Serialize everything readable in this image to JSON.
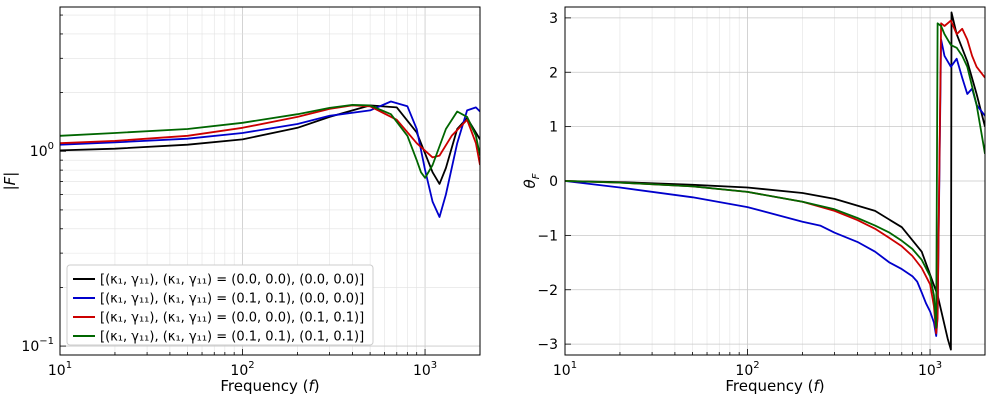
{
  "colors": {
    "black": "#000000",
    "blue": "#0000cc",
    "red": "#cc0000",
    "green": "#006600"
  },
  "chart_data": [
    {
      "type": "line",
      "xlabel": "Frequency (f)",
      "ylabel": "|F|",
      "xscale": "log",
      "yscale": "log",
      "xlim": [
        10,
        2000
      ],
      "ylim": [
        0.09,
        5.5
      ],
      "x_ticks": [
        {
          "v": 10,
          "base": "10",
          "exp": "1"
        },
        {
          "v": 100,
          "base": "10",
          "exp": "2"
        },
        {
          "v": 1000,
          "base": "10",
          "exp": "3"
        }
      ],
      "y_ticks": [
        {
          "v": 0.1,
          "base": "10",
          "exp": "−1"
        },
        {
          "v": 1,
          "base": "10",
          "exp": "0"
        }
      ],
      "grid": true,
      "legend_position": "lower-left",
      "series": [
        {
          "name": "[(κ₁, γ₁₁), (κ₁, γ₁₁) = (0.0, 0.0), (0.0, 0.0)]",
          "color": "#000000",
          "x": [
            10,
            20,
            50,
            100,
            200,
            300,
            500,
            700,
            900,
            1100,
            1200,
            1300,
            1500,
            1700,
            2000
          ],
          "y": [
            1.01,
            1.03,
            1.08,
            1.15,
            1.32,
            1.5,
            1.72,
            1.68,
            1.25,
            0.78,
            0.68,
            0.82,
            1.3,
            1.48,
            1.15
          ]
        },
        {
          "name": "[(κ₁, γ₁₁), (κ₁, γ₁₁) = (0.1, 0.1), (0.0, 0.0)]",
          "color": "#0000cc",
          "x": [
            10,
            20,
            50,
            100,
            200,
            300,
            500,
            650,
            800,
            900,
            1000,
            1100,
            1200,
            1300,
            1500,
            1700,
            1900,
            2000
          ],
          "y": [
            1.08,
            1.11,
            1.16,
            1.24,
            1.38,
            1.52,
            1.62,
            1.8,
            1.7,
            1.3,
            0.8,
            0.55,
            0.46,
            0.6,
            1.1,
            1.62,
            1.68,
            1.6
          ]
        },
        {
          "name": "[(κ₁, γ₁₁), (κ₁, γ₁₁) = (0.0, 0.0), (0.1, 0.1)]",
          "color": "#cc0000",
          "x": [
            10,
            20,
            50,
            100,
            200,
            300,
            400,
            500,
            700,
            900,
            1100,
            1200,
            1400,
            1700,
            1900,
            2000
          ],
          "y": [
            1.1,
            1.13,
            1.2,
            1.32,
            1.5,
            1.65,
            1.72,
            1.7,
            1.45,
            1.1,
            0.93,
            0.95,
            1.2,
            1.45,
            1.1,
            0.85
          ]
        },
        {
          "name": "[(κ₁, γ₁₁), (κ₁, γ₁₁) = (0.1, 0.1), (0.1, 0.1)]",
          "color": "#006600",
          "x": [
            10,
            20,
            50,
            100,
            200,
            300,
            400,
            500,
            650,
            800,
            900,
            950,
            1000,
            1100,
            1300,
            1500,
            1700,
            1900,
            2000
          ],
          "y": [
            1.2,
            1.24,
            1.3,
            1.4,
            1.55,
            1.67,
            1.73,
            1.72,
            1.55,
            1.2,
            0.9,
            0.78,
            0.73,
            0.85,
            1.3,
            1.6,
            1.5,
            1.2,
            0.95
          ]
        }
      ]
    },
    {
      "type": "line",
      "xlabel": "Frequency (f)",
      "ylabel": "θF",
      "xscale": "log",
      "yscale": "linear",
      "xlim": [
        10,
        2000
      ],
      "ylim": [
        -3.2,
        3.2
      ],
      "x_ticks": [
        {
          "v": 10,
          "base": "10",
          "exp": "1"
        },
        {
          "v": 100,
          "base": "10",
          "exp": "2"
        },
        {
          "v": 1000,
          "base": "10",
          "exp": "3"
        }
      ],
      "y_ticks": [
        -3,
        -2,
        -1,
        0,
        1,
        2,
        3
      ],
      "grid": true,
      "series": [
        {
          "name": "black",
          "color": "#000000",
          "x": [
            10,
            20,
            50,
            100,
            200,
            300,
            500,
            700,
            900,
            1100,
            1250,
            1300,
            1310,
            1400,
            1600,
            1800,
            2000
          ],
          "y": [
            0,
            -0.02,
            -0.07,
            -0.12,
            -0.22,
            -0.33,
            -0.55,
            -0.85,
            -1.3,
            -2.1,
            -2.9,
            -3.1,
            3.1,
            2.7,
            2.2,
            1.6,
            1.0
          ]
        },
        {
          "name": "blue",
          "color": "#0000cc",
          "x": [
            10,
            20,
            50,
            100,
            200,
            250,
            300,
            400,
            500,
            600,
            700,
            800,
            850,
            900,
            950,
            1000,
            1050,
            1080,
            1100,
            1150,
            1200,
            1300,
            1400,
            1500,
            1600,
            1700,
            1800,
            2000
          ],
          "y": [
            0,
            -0.12,
            -0.3,
            -0.48,
            -0.75,
            -0.82,
            -0.95,
            -1.12,
            -1.3,
            -1.5,
            -1.62,
            -1.75,
            -1.85,
            -2.05,
            -2.25,
            -2.4,
            -2.6,
            -2.85,
            -2.5,
            2.6,
            2.3,
            2.1,
            2.25,
            1.9,
            1.6,
            1.7,
            1.4,
            1.2
          ]
        },
        {
          "name": "red",
          "color": "#cc0000",
          "x": [
            10,
            20,
            50,
            100,
            200,
            300,
            400,
            500,
            600,
            700,
            800,
            900,
            1000,
            1050,
            1080,
            1100,
            1150,
            1200,
            1300,
            1400,
            1500,
            1600,
            1700,
            1800,
            2000
          ],
          "y": [
            0,
            -0.03,
            -0.1,
            -0.2,
            -0.38,
            -0.55,
            -0.72,
            -0.88,
            -1.05,
            -1.2,
            -1.38,
            -1.6,
            -1.9,
            -2.3,
            -2.8,
            -2.5,
            2.9,
            2.85,
            2.95,
            2.7,
            2.8,
            2.6,
            2.3,
            2.1,
            1.9
          ]
        },
        {
          "name": "green",
          "color": "#006600",
          "x": [
            10,
            20,
            50,
            100,
            200,
            300,
            400,
            500,
            600,
            700,
            800,
            900,
            1000,
            1050,
            1080,
            1100,
            1150,
            1200,
            1300,
            1400,
            1500,
            1600,
            1800,
            2000
          ],
          "y": [
            0,
            -0.03,
            -0.1,
            -0.2,
            -0.38,
            -0.52,
            -0.68,
            -0.82,
            -0.95,
            -1.1,
            -1.25,
            -1.45,
            -1.75,
            -2.1,
            -2.7,
            2.9,
            2.85,
            2.7,
            2.5,
            2.45,
            2.3,
            2.1,
            1.4,
            0.5
          ]
        }
      ]
    }
  ]
}
